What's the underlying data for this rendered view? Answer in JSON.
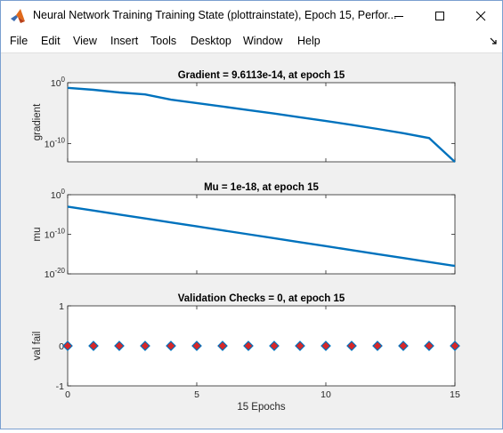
{
  "window": {
    "title": "Neural Network Training Training State (plottrainstate), Epoch 15, Perfor...",
    "controls": {
      "minimize": "minimize-icon",
      "maximize": "maximize-icon",
      "close": "close-icon"
    }
  },
  "menu": {
    "items": [
      "File",
      "Edit",
      "View",
      "Insert",
      "Tools",
      "Desktop",
      "Window",
      "Help"
    ]
  },
  "colors": {
    "line": "#0072bd",
    "marker_fill": "#d62728",
    "marker_edge": "#0072bd",
    "axes_bg": "#ffffff",
    "figure_bg": "#f0f0f0"
  },
  "chart_data": [
    {
      "type": "line",
      "title": "Gradient = 9.6113e-14, at epoch 15",
      "ylabel": "gradient",
      "xlabel": "",
      "yscale": "log",
      "ylim": [
        1e-13,
        1
      ],
      "xlim": [
        0,
        15
      ],
      "ytick_labels": [
        "10^0",
        "10^-10"
      ],
      "x": [
        0,
        1,
        2,
        3,
        4,
        5,
        6,
        7,
        8,
        9,
        10,
        11,
        12,
        13,
        14,
        15
      ],
      "values": [
        0.14,
        0.068,
        0.025,
        0.012,
        0.0016,
        0.00045,
        0.00012,
        3.2e-05,
        8.5e-06,
        2.1e-06,
        5e-07,
        1.2e-07,
        2.5e-08,
        5e-09,
        8e-10,
        9.6113e-14
      ]
    },
    {
      "type": "line",
      "title": "Mu = 1e-18, at epoch 15",
      "ylabel": "mu",
      "xlabel": "",
      "yscale": "log",
      "ylim": [
        1e-20,
        1
      ],
      "xlim": [
        0,
        15
      ],
      "ytick_labels": [
        "10^0",
        "10^-10",
        "10^-20"
      ],
      "x": [
        0,
        1,
        2,
        3,
        4,
        5,
        6,
        7,
        8,
        9,
        10,
        11,
        12,
        13,
        14,
        15
      ],
      "values": [
        0.001,
        0.0001,
        1e-05,
        1e-06,
        1e-07,
        1e-08,
        1e-09,
        1e-10,
        1e-11,
        1e-12,
        1e-13,
        1e-14,
        1e-15,
        1e-16,
        1e-17,
        1e-18
      ]
    },
    {
      "type": "scatter",
      "title": "Validation Checks = 0, at epoch 15",
      "ylabel": "val fail",
      "xlabel": "15 Epochs",
      "yscale": "linear",
      "ylim": [
        -1,
        1
      ],
      "xlim": [
        0,
        15
      ],
      "yticks": [
        1,
        0,
        -1
      ],
      "xticks": [
        0,
        5,
        10,
        15
      ],
      "x": [
        0,
        1,
        2,
        3,
        4,
        5,
        6,
        7,
        8,
        9,
        10,
        11,
        12,
        13,
        14,
        15
      ],
      "values": [
        0,
        0,
        0,
        0,
        0,
        0,
        0,
        0,
        0,
        0,
        0,
        0,
        0,
        0,
        0,
        0
      ],
      "marker": "diamond"
    }
  ]
}
